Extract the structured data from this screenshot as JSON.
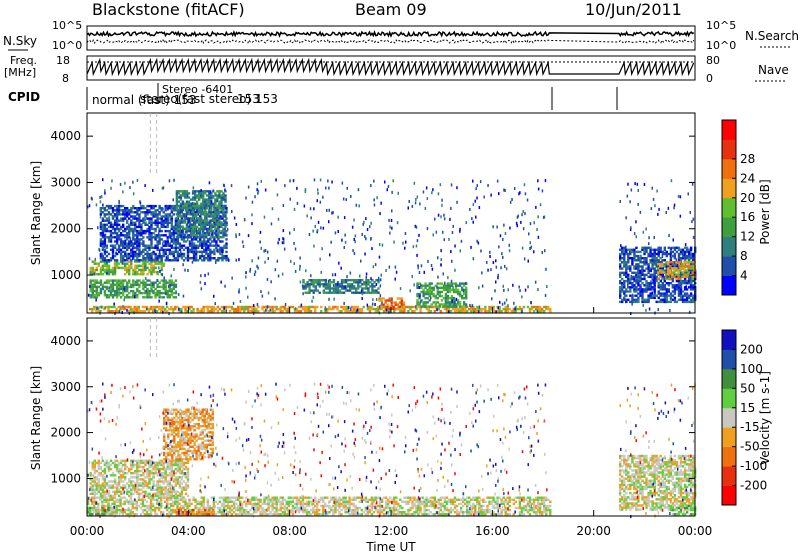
{
  "header": {
    "radar": "Blackstone (fitACF)",
    "beam": "Beam 09",
    "date": "10/Jun/2011"
  },
  "noise_panel": {
    "left_label": "N.Sky",
    "right_label": "N.Search",
    "left_ticks": [
      "10^5",
      "10^0"
    ],
    "right_ticks": [
      "10^5",
      "10^0"
    ]
  },
  "freq_panel": {
    "left_label_1": "Freq.",
    "left_label_2": "[MHz]",
    "right_label": "Nave",
    "left_ticks": [
      "18",
      "8"
    ],
    "right_ticks": [
      "80",
      "0"
    ]
  },
  "cpid": {
    "label": "CPID",
    "text_main": "normal (fast) 153",
    "text_overlap_1": "Stereo -6401",
    "text_overlap_2": "stereo(fast stereo) 153",
    "text_overlap_3": "153"
  },
  "axes": {
    "ylabel": "Slant Range [km]",
    "xlabel": "Time UT",
    "y_ticks": [
      "1000",
      "2000",
      "3000",
      "4000"
    ],
    "x_ticks": [
      "00:00",
      "04:00",
      "08:00",
      "12:00",
      "16:00",
      "20:00",
      "00:00"
    ]
  },
  "power_colorbar": {
    "label": "Power [dB]",
    "ticks": [
      "4",
      "8",
      "12",
      "16",
      "20",
      "24",
      "28"
    ],
    "colors": [
      "#0000ff",
      "#1f4fa8",
      "#2f7f7f",
      "#3f9f3f",
      "#5fbf2f",
      "#f0a020",
      "#f07010",
      "#e83010",
      "#ff0000"
    ]
  },
  "velocity_colorbar": {
    "label": "Velocity [m s-1]",
    "ticks": [
      "200",
      "100",
      "50",
      "15",
      "-15",
      "-50",
      "-100",
      "-200"
    ],
    "colors": [
      "#1010c0",
      "#1f4fa8",
      "#3f8f3f",
      "#5fcf3f",
      "#c8c8c0",
      "#f0a020",
      "#f07010",
      "#e83010",
      "#ff0000"
    ]
  },
  "chart_data": {
    "type": "heatmap",
    "x_range_hours": [
      0,
      24
    ],
    "y_range_km": [
      180,
      4500
    ],
    "data_gap_hours": [
      18.3,
      21.0
    ],
    "stereo_marker_hours": [
      2.5,
      2.75
    ],
    "power_regions": [
      {
        "t": [
          0,
          18.3
        ],
        "r": [
          200,
          300
        ],
        "level": 5
      },
      {
        "t": [
          0.1,
          3.5
        ],
        "r": [
          500,
          900
        ],
        "level": 3
      },
      {
        "t": [
          0.1,
          3.0
        ],
        "r": [
          1000,
          1300
        ],
        "level": 4
      },
      {
        "t": [
          0.5,
          5.5
        ],
        "r": [
          1300,
          2500
        ],
        "level": 1
      },
      {
        "t": [
          3.5,
          5.5
        ],
        "r": [
          1800,
          2800
        ],
        "level": 2
      },
      {
        "t": [
          8.5,
          11.5
        ],
        "r": [
          600,
          900
        ],
        "level": 2
      },
      {
        "t": [
          11.5,
          12.5
        ],
        "r": [
          250,
          500
        ],
        "level": 6
      },
      {
        "t": [
          13.0,
          15.0
        ],
        "r": [
          300,
          800
        ],
        "level": 3
      },
      {
        "t": [
          21.0,
          24.0
        ],
        "r": [
          400,
          1600
        ],
        "level": 1
      },
      {
        "t": [
          22.5,
          24.0
        ],
        "r": [
          900,
          1300
        ],
        "level": 5
      }
    ],
    "velocity_regions": [
      {
        "t": [
          0,
          18.3
        ],
        "r": [
          200,
          600
        ],
        "level": 4
      },
      {
        "t": [
          0.1,
          4.0
        ],
        "r": [
          600,
          1400
        ],
        "level": 4
      },
      {
        "t": [
          3.0,
          5.0
        ],
        "r": [
          1400,
          2500
        ],
        "level": 5
      },
      {
        "t": [
          0,
          1.0
        ],
        "r": [
          200,
          350
        ],
        "level": 3
      },
      {
        "t": [
          3.5,
          5.0
        ],
        "r": [
          200,
          300
        ],
        "level": 6
      },
      {
        "t": [
          21.0,
          24.0
        ],
        "r": [
          300,
          1500
        ],
        "level": 4
      },
      {
        "t": [
          23.0,
          24.0
        ],
        "r": [
          200,
          400
        ],
        "level": 3
      }
    ]
  }
}
